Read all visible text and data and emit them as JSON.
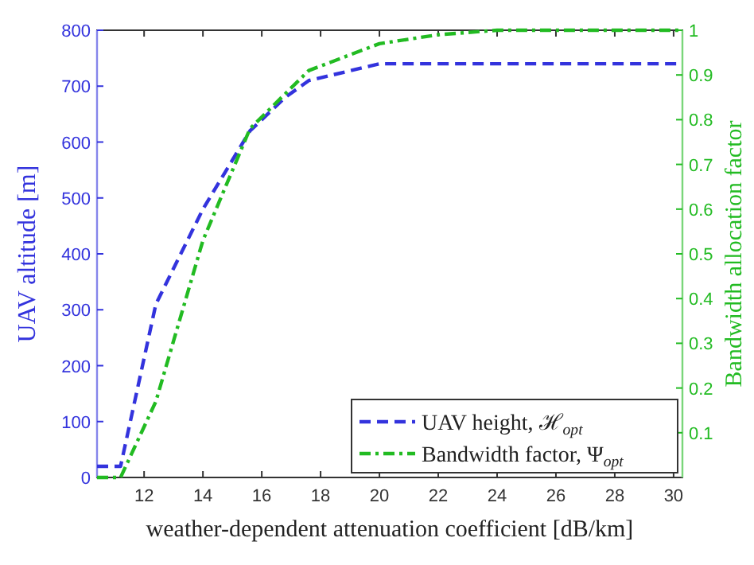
{
  "chart_data": {
    "type": "line",
    "xlabel": "weather-dependent attenuation coefficient [dB/km]",
    "ylabel": "UAV altitude [m]",
    "y2label": "Bandwidth allocation factor",
    "x": [
      10.4,
      11.2,
      12.4,
      14,
      15.6,
      16.8,
      17.6,
      20,
      30.3
    ],
    "xlim": [
      10.4,
      30.3
    ],
    "xticks": [
      12,
      14,
      16,
      18,
      20,
      22,
      24,
      26,
      28,
      30
    ],
    "ylim": [
      0,
      800
    ],
    "yticks": [
      0,
      100,
      200,
      300,
      400,
      500,
      600,
      700,
      800
    ],
    "y2lim": [
      0,
      1
    ],
    "y2ticks": [
      0.1,
      0.2,
      0.3,
      0.4,
      0.5,
      0.6,
      0.7,
      0.8,
      0.9,
      1
    ],
    "legend": "bottom right",
    "grid": false,
    "series": [
      {
        "name": "UAV height, ℋ$_{opt}$",
        "color": "#3333dd",
        "line_style": "dashed",
        "values": [
          20,
          20,
          310,
          480,
          620,
          680,
          710,
          740,
          740
        ]
      },
      {
        "name": "Bandwidth factor, Ψ$_{opt}$",
        "color": "#22bb22",
        "line_style": "dashdot",
        "axis": "y2",
        "x": [
          10.4,
          11.2,
          12.4,
          14,
          15.6,
          17.6,
          20,
          22,
          24,
          30.3
        ],
        "values": [
          0,
          0,
          0.17,
          0.53,
          0.78,
          0.91,
          0.97,
          0.99,
          1,
          1
        ]
      }
    ]
  }
}
